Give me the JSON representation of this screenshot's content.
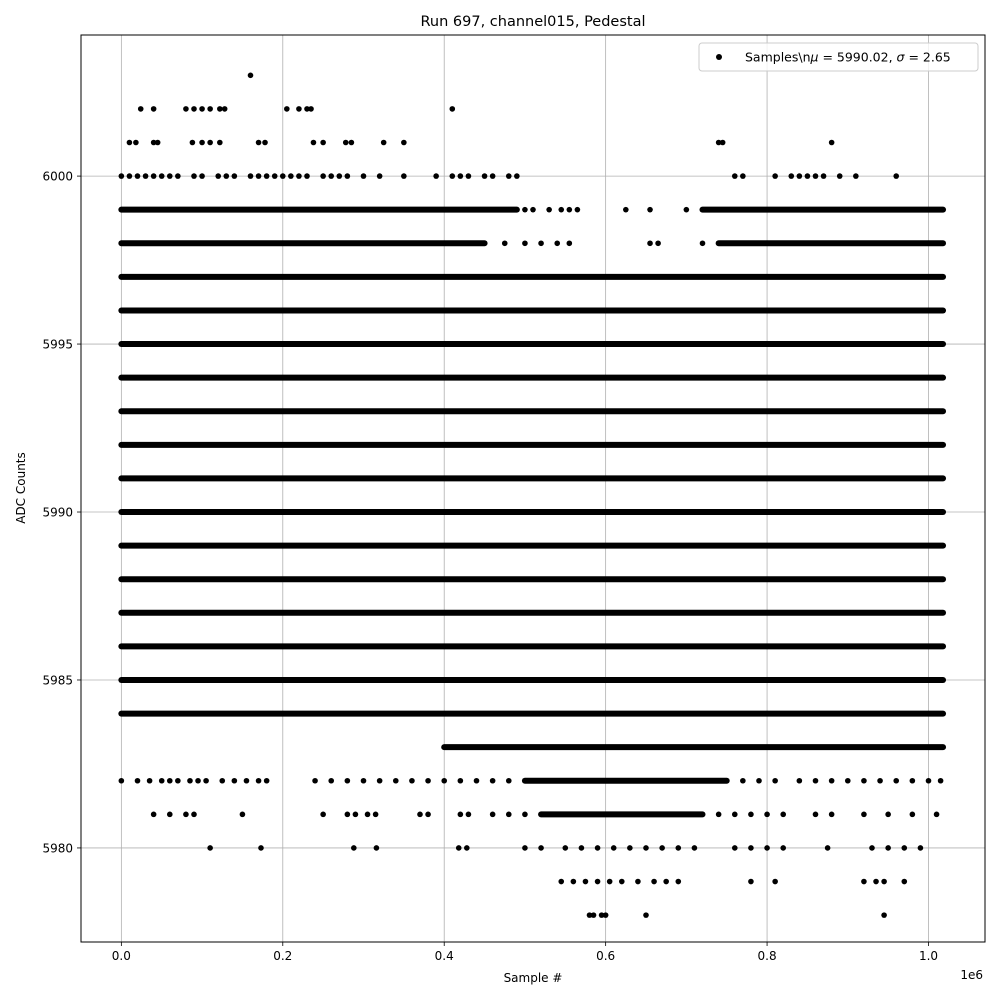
{
  "chart_data": {
    "type": "scatter",
    "title": "Run 697, channel015, Pedestal",
    "xlabel": "Sample #",
    "ylabel": "ADC Counts",
    "x_offset_label": "1e6",
    "xlim": [
      -0.05,
      1.07
    ],
    "ylim": [
      5977.2,
      6004.2
    ],
    "x_ticks": [
      0.0,
      0.2,
      0.4,
      0.6,
      0.8,
      1.0
    ],
    "x_tick_labels": [
      "0.0",
      "0.2",
      "0.4",
      "0.6",
      "0.8",
      "1.0"
    ],
    "y_ticks": [
      5980,
      5985,
      5990,
      5995,
      6000
    ],
    "y_tick_labels": [
      "5980",
      "5985",
      "5990",
      "5995",
      "6000"
    ],
    "grid": true,
    "legend_position": "top-right",
    "marker_color": "#000000",
    "series": [
      {
        "name": "Samples\\nμ = 5990.02, σ = 2.65",
        "legend_parts": {
          "prefix": "Samples\\n",
          "mu_symbol": "μ",
          "mu_text": " = 5990.02, ",
          "sigma_symbol": "σ",
          "sigma_text": " = 2.65"
        },
        "x_range": [
          0.0,
          1.018
        ],
        "dense_levels": [
          5985,
          5986,
          5987,
          5988,
          5989,
          5990,
          5991,
          5992,
          5993,
          5994,
          5995,
          5996,
          5997
        ],
        "partial_levels": [
          {
            "y": 5999,
            "segments": [
              [
                0.0,
                0.49
              ],
              [
                0.72,
                1.018
              ]
            ]
          },
          {
            "y": 5998,
            "segments": [
              [
                0.0,
                0.45
              ],
              [
                0.74,
                1.018
              ]
            ]
          },
          {
            "y": 5984,
            "segments": [
              [
                0.0,
                1.018
              ]
            ]
          },
          {
            "y": 5983,
            "segments": [
              [
                0.4,
                1.018
              ]
            ]
          },
          {
            "y": 5982,
            "segments": [
              [
                0.5,
                0.75
              ]
            ]
          },
          {
            "y": 5981,
            "segments": [
              [
                0.52,
                0.72
              ]
            ]
          }
        ],
        "sparse_points": [
          [
            0.16,
            6003
          ],
          [
            0.024,
            6002
          ],
          [
            0.04,
            6002
          ],
          [
            0.08,
            6002
          ],
          [
            0.09,
            6002
          ],
          [
            0.1,
            6002
          ],
          [
            0.11,
            6002
          ],
          [
            0.122,
            6002
          ],
          [
            0.128,
            6002
          ],
          [
            0.205,
            6002
          ],
          [
            0.22,
            6002
          ],
          [
            0.23,
            6002
          ],
          [
            0.235,
            6002
          ],
          [
            0.41,
            6002
          ],
          [
            0.01,
            6001
          ],
          [
            0.018,
            6001
          ],
          [
            0.04,
            6001
          ],
          [
            0.045,
            6001
          ],
          [
            0.088,
            6001
          ],
          [
            0.1,
            6001
          ],
          [
            0.11,
            6001
          ],
          [
            0.122,
            6001
          ],
          [
            0.17,
            6001
          ],
          [
            0.178,
            6001
          ],
          [
            0.238,
            6001
          ],
          [
            0.25,
            6001
          ],
          [
            0.278,
            6001
          ],
          [
            0.285,
            6001
          ],
          [
            0.325,
            6001
          ],
          [
            0.35,
            6001
          ],
          [
            0.74,
            6001
          ],
          [
            0.745,
            6001
          ],
          [
            0.88,
            6001
          ],
          [
            0.0,
            6000
          ],
          [
            0.01,
            6000
          ],
          [
            0.02,
            6000
          ],
          [
            0.03,
            6000
          ],
          [
            0.04,
            6000
          ],
          [
            0.05,
            6000
          ],
          [
            0.06,
            6000
          ],
          [
            0.07,
            6000
          ],
          [
            0.09,
            6000
          ],
          [
            0.1,
            6000
          ],
          [
            0.12,
            6000
          ],
          [
            0.13,
            6000
          ],
          [
            0.14,
            6000
          ],
          [
            0.16,
            6000
          ],
          [
            0.17,
            6000
          ],
          [
            0.18,
            6000
          ],
          [
            0.19,
            6000
          ],
          [
            0.2,
            6000
          ],
          [
            0.21,
            6000
          ],
          [
            0.22,
            6000
          ],
          [
            0.23,
            6000
          ],
          [
            0.25,
            6000
          ],
          [
            0.26,
            6000
          ],
          [
            0.27,
            6000
          ],
          [
            0.28,
            6000
          ],
          [
            0.3,
            6000
          ],
          [
            0.32,
            6000
          ],
          [
            0.35,
            6000
          ],
          [
            0.39,
            6000
          ],
          [
            0.41,
            6000
          ],
          [
            0.42,
            6000
          ],
          [
            0.43,
            6000
          ],
          [
            0.45,
            6000
          ],
          [
            0.46,
            6000
          ],
          [
            0.48,
            6000
          ],
          [
            0.49,
            6000
          ],
          [
            0.76,
            6000
          ],
          [
            0.77,
            6000
          ],
          [
            0.81,
            6000
          ],
          [
            0.83,
            6000
          ],
          [
            0.84,
            6000
          ],
          [
            0.85,
            6000
          ],
          [
            0.86,
            6000
          ],
          [
            0.87,
            6000
          ],
          [
            0.89,
            6000
          ],
          [
            0.91,
            6000
          ],
          [
            0.96,
            6000
          ],
          [
            0.5,
            5999
          ],
          [
            0.51,
            5999
          ],
          [
            0.53,
            5999
          ],
          [
            0.545,
            5999
          ],
          [
            0.555,
            5999
          ],
          [
            0.565,
            5999
          ],
          [
            0.625,
            5999
          ],
          [
            0.655,
            5999
          ],
          [
            0.7,
            5999
          ],
          [
            0.475,
            5998
          ],
          [
            0.5,
            5998
          ],
          [
            0.52,
            5998
          ],
          [
            0.54,
            5998
          ],
          [
            0.555,
            5998
          ],
          [
            0.655,
            5998
          ],
          [
            0.665,
            5998
          ],
          [
            0.72,
            5998
          ],
          [
            0.0,
            5982
          ],
          [
            0.02,
            5982
          ],
          [
            0.035,
            5982
          ],
          [
            0.05,
            5982
          ],
          [
            0.06,
            5982
          ],
          [
            0.07,
            5982
          ],
          [
            0.085,
            5982
          ],
          [
            0.095,
            5982
          ],
          [
            0.105,
            5982
          ],
          [
            0.125,
            5982
          ],
          [
            0.14,
            5982
          ],
          [
            0.155,
            5982
          ],
          [
            0.17,
            5982
          ],
          [
            0.18,
            5982
          ],
          [
            0.24,
            5982
          ],
          [
            0.26,
            5982
          ],
          [
            0.28,
            5982
          ],
          [
            0.3,
            5982
          ],
          [
            0.32,
            5982
          ],
          [
            0.34,
            5982
          ],
          [
            0.36,
            5982
          ],
          [
            0.38,
            5982
          ],
          [
            0.4,
            5982
          ],
          [
            0.42,
            5982
          ],
          [
            0.44,
            5982
          ],
          [
            0.46,
            5982
          ],
          [
            0.48,
            5982
          ],
          [
            0.77,
            5982
          ],
          [
            0.79,
            5982
          ],
          [
            0.81,
            5982
          ],
          [
            0.84,
            5982
          ],
          [
            0.86,
            5982
          ],
          [
            0.88,
            5982
          ],
          [
            0.9,
            5982
          ],
          [
            0.92,
            5982
          ],
          [
            0.94,
            5982
          ],
          [
            0.96,
            5982
          ],
          [
            0.98,
            5982
          ],
          [
            1.0,
            5982
          ],
          [
            1.015,
            5982
          ],
          [
            0.04,
            5981
          ],
          [
            0.06,
            5981
          ],
          [
            0.08,
            5981
          ],
          [
            0.09,
            5981
          ],
          [
            0.15,
            5981
          ],
          [
            0.25,
            5981
          ],
          [
            0.28,
            5981
          ],
          [
            0.29,
            5981
          ],
          [
            0.305,
            5981
          ],
          [
            0.315,
            5981
          ],
          [
            0.37,
            5981
          ],
          [
            0.38,
            5981
          ],
          [
            0.42,
            5981
          ],
          [
            0.43,
            5981
          ],
          [
            0.46,
            5981
          ],
          [
            0.48,
            5981
          ],
          [
            0.5,
            5981
          ],
          [
            0.74,
            5981
          ],
          [
            0.76,
            5981
          ],
          [
            0.78,
            5981
          ],
          [
            0.8,
            5981
          ],
          [
            0.82,
            5981
          ],
          [
            0.86,
            5981
          ],
          [
            0.88,
            5981
          ],
          [
            0.92,
            5981
          ],
          [
            0.95,
            5981
          ],
          [
            0.98,
            5981
          ],
          [
            1.01,
            5981
          ],
          [
            0.11,
            5980
          ],
          [
            0.173,
            5980
          ],
          [
            0.288,
            5980
          ],
          [
            0.316,
            5980
          ],
          [
            0.418,
            5980
          ],
          [
            0.428,
            5980
          ],
          [
            0.5,
            5980
          ],
          [
            0.52,
            5980
          ],
          [
            0.55,
            5980
          ],
          [
            0.57,
            5980
          ],
          [
            0.59,
            5980
          ],
          [
            0.61,
            5980
          ],
          [
            0.63,
            5980
          ],
          [
            0.65,
            5980
          ],
          [
            0.67,
            5980
          ],
          [
            0.69,
            5980
          ],
          [
            0.71,
            5980
          ],
          [
            0.76,
            5980
          ],
          [
            0.78,
            5980
          ],
          [
            0.8,
            5980
          ],
          [
            0.82,
            5980
          ],
          [
            0.875,
            5980
          ],
          [
            0.93,
            5980
          ],
          [
            0.95,
            5980
          ],
          [
            0.97,
            5980
          ],
          [
            0.99,
            5980
          ],
          [
            0.545,
            5979
          ],
          [
            0.56,
            5979
          ],
          [
            0.575,
            5979
          ],
          [
            0.59,
            5979
          ],
          [
            0.605,
            5979
          ],
          [
            0.62,
            5979
          ],
          [
            0.64,
            5979
          ],
          [
            0.66,
            5979
          ],
          [
            0.675,
            5979
          ],
          [
            0.69,
            5979
          ],
          [
            0.78,
            5979
          ],
          [
            0.81,
            5979
          ],
          [
            0.92,
            5979
          ],
          [
            0.935,
            5979
          ],
          [
            0.945,
            5979
          ],
          [
            0.97,
            5979
          ],
          [
            0.58,
            5978
          ],
          [
            0.585,
            5978
          ],
          [
            0.595,
            5978
          ],
          [
            0.6,
            5978
          ],
          [
            0.65,
            5978
          ],
          [
            0.945,
            5978
          ]
        ]
      }
    ]
  }
}
